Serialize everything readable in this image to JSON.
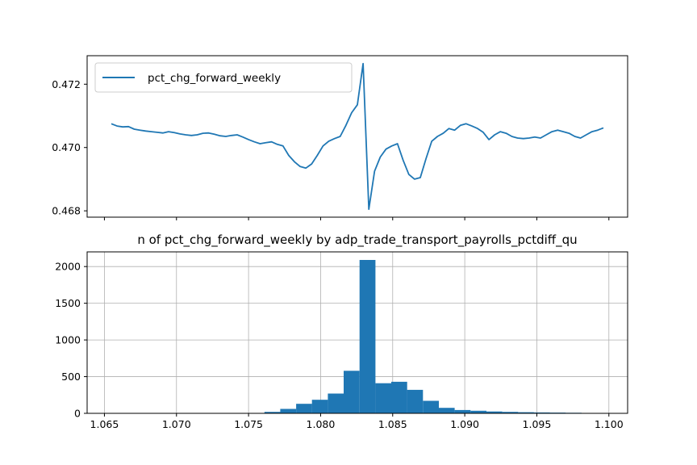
{
  "chart_data": [
    {
      "type": "line",
      "legend": {
        "entries": [
          "pct_chg_forward_weekly"
        ],
        "position": "upper-left"
      },
      "ylim": [
        0.4678,
        0.4729
      ],
      "yticks": [
        "0.468",
        "0.470",
        "0.472"
      ],
      "ytick_values": [
        0.468,
        0.47,
        0.472
      ],
      "xtick_labels_visible": false,
      "grid": false,
      "series": [
        {
          "name": "pct_chg_forward_weekly",
          "color": "#1f77b4",
          "values": [
            0.47075,
            0.47068,
            0.47065,
            0.47066,
            0.47058,
            0.47055,
            0.47052,
            0.4705,
            0.47048,
            0.47046,
            0.4705,
            0.47047,
            0.47043,
            0.4704,
            0.47038,
            0.4704,
            0.47045,
            0.47046,
            0.47042,
            0.47037,
            0.47035,
            0.47038,
            0.4704,
            0.47033,
            0.47025,
            0.47018,
            0.47012,
            0.47015,
            0.47018,
            0.4701,
            0.47005,
            0.46975,
            0.46955,
            0.4694,
            0.46935,
            0.46948,
            0.46975,
            0.47005,
            0.4702,
            0.47028,
            0.47035,
            0.4707,
            0.4711,
            0.47135,
            0.47265,
            0.46805,
            0.46925,
            0.4697,
            0.46995,
            0.47005,
            0.47012,
            0.4696,
            0.46915,
            0.469,
            0.46905,
            0.46965,
            0.4702,
            0.47035,
            0.47045,
            0.4706,
            0.47055,
            0.4707,
            0.47075,
            0.47068,
            0.4706,
            0.47048,
            0.47025,
            0.4704,
            0.4705,
            0.47045,
            0.47035,
            0.4703,
            0.47028,
            0.4703,
            0.47033,
            0.4703,
            0.4704,
            0.4705,
            0.47055,
            0.4705,
            0.47045,
            0.47035,
            0.4703,
            0.4704,
            0.4705,
            0.47055,
            0.47062
          ]
        }
      ]
    },
    {
      "type": "bar",
      "title": "n of pct_chg_forward_weekly by adp_trade_transport_payrolls_pctdiff_qu",
      "xlim": [
        1.0638,
        1.1013
      ],
      "ylim": [
        0,
        2200
      ],
      "xticks": [
        "1.065",
        "1.070",
        "1.075",
        "1.080",
        "1.085",
        "1.090",
        "1.095",
        "1.100"
      ],
      "xtick_values": [
        1.065,
        1.07,
        1.075,
        1.08,
        1.085,
        1.09,
        1.095,
        1.1
      ],
      "yticks": [
        "0",
        "500",
        "1000",
        "1500",
        "2000"
      ],
      "ytick_values": [
        0,
        500,
        1000,
        1500,
        2000
      ],
      "grid": true,
      "color": "#1f77b4",
      "bin_edges": [
        1.065,
        1.0761,
        1.0772,
        1.0783,
        1.0794,
        1.0805,
        1.0816,
        1.0827,
        1.0838,
        1.0849,
        1.086,
        1.0871,
        1.0882,
        1.0893,
        1.0904,
        1.0915,
        1.0926,
        1.0937,
        1.0948,
        1.0959,
        1.097,
        1.0981,
        1.0995
      ],
      "values": [
        5,
        20,
        60,
        130,
        185,
        270,
        580,
        2090,
        410,
        430,
        320,
        170,
        75,
        45,
        35,
        25,
        20,
        15,
        12,
        10,
        8,
        6
      ]
    }
  ]
}
